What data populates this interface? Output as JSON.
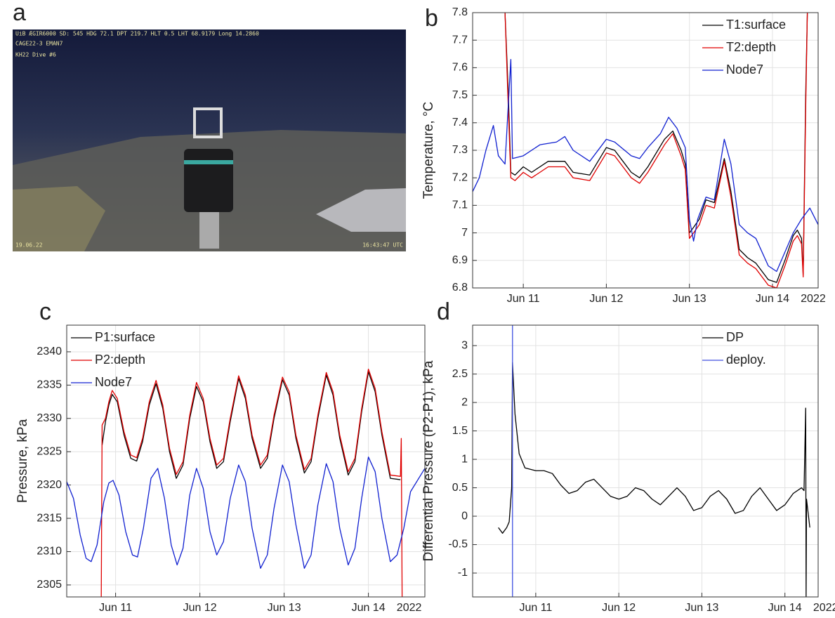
{
  "panel_labels": [
    "a",
    "b",
    "c",
    "d"
  ],
  "photo": {
    "overlay": [
      "UiB ÆGIR6000  SD: 545 HDG  72.1  DPT  219.7  HLT  0.5  LHT  68.9179  Long  14.2860",
      "CAGE22-3 EMAN7",
      "KH22 Dive #6",
      "19.06.22",
      "16:43:47 UTC"
    ]
  },
  "chart_data": [
    {
      "type": "line",
      "y_label": "Temperature, °C",
      "x_year_label": "2022",
      "grid": true,
      "legend": "upper right",
      "xlim": [
        10.39,
        14.55
      ],
      "ylim": [
        6.8,
        7.8
      ],
      "xticks": [
        {
          "value": 11,
          "label": "Jun 11"
        },
        {
          "value": 12,
          "label": "Jun 12"
        },
        {
          "value": 13,
          "label": "Jun 13"
        },
        {
          "value": 14,
          "label": "Jun 14"
        }
      ],
      "yticks": [
        6.8,
        6.9,
        7,
        7.1,
        7.2,
        7.3,
        7.4,
        7.5,
        7.6,
        7.7,
        7.8
      ],
      "series": [
        {
          "name": "T1:surface",
          "color": "#000000",
          "x": [
            10.78,
            10.82,
            10.85,
            10.9,
            11.0,
            11.1,
            11.3,
            11.5,
            11.6,
            11.8,
            12.0,
            12.1,
            12.2,
            12.3,
            12.4,
            12.5,
            12.7,
            12.8,
            12.9,
            12.95,
            13.0,
            13.05,
            13.12,
            13.2,
            13.3,
            13.42,
            13.5,
            13.6,
            13.7,
            13.8,
            13.95,
            14.05,
            14.15,
            14.25,
            14.3,
            14.35,
            14.37,
            14.4,
            14.42
          ],
          "values": [
            7.8,
            7.5,
            7.22,
            7.21,
            7.24,
            7.22,
            7.26,
            7.26,
            7.22,
            7.21,
            7.31,
            7.3,
            7.26,
            7.22,
            7.2,
            7.24,
            7.34,
            7.37,
            7.3,
            7.25,
            7.0,
            7.02,
            7.05,
            7.12,
            7.11,
            7.27,
            7.15,
            6.94,
            6.91,
            6.89,
            6.83,
            6.82,
            6.9,
            6.99,
            7.01,
            6.98,
            6.85,
            7.5,
            7.8
          ]
        },
        {
          "name": "T2:depth",
          "color": "#e00000",
          "x": [
            10.78,
            10.82,
            10.85,
            10.9,
            11.0,
            11.1,
            11.3,
            11.5,
            11.6,
            11.8,
            12.0,
            12.1,
            12.2,
            12.3,
            12.4,
            12.5,
            12.7,
            12.8,
            12.9,
            12.95,
            13.0,
            13.05,
            13.12,
            13.2,
            13.3,
            13.42,
            13.5,
            13.6,
            13.7,
            13.8,
            13.95,
            14.05,
            14.15,
            14.25,
            14.3,
            14.35,
            14.37,
            14.4,
            14.42
          ],
          "values": [
            7.8,
            7.45,
            7.2,
            7.19,
            7.22,
            7.2,
            7.24,
            7.24,
            7.2,
            7.19,
            7.29,
            7.28,
            7.24,
            7.2,
            7.18,
            7.22,
            7.32,
            7.36,
            7.28,
            7.23,
            6.98,
            7.0,
            7.03,
            7.1,
            7.09,
            7.26,
            7.13,
            6.92,
            6.89,
            6.87,
            6.81,
            6.8,
            6.88,
            6.97,
            6.99,
            6.96,
            6.84,
            7.45,
            7.8
          ]
        },
        {
          "name": "Node7",
          "color": "#1020d0",
          "x": [
            10.39,
            10.47,
            10.55,
            10.64,
            10.7,
            10.78,
            10.85,
            10.87,
            11.0,
            11.2,
            11.4,
            11.5,
            11.6,
            11.8,
            12.0,
            12.1,
            12.3,
            12.4,
            12.5,
            12.65,
            12.75,
            12.85,
            12.95,
            13.0,
            13.05,
            13.1,
            13.2,
            13.3,
            13.42,
            13.5,
            13.6,
            13.7,
            13.8,
            13.95,
            14.05,
            14.15,
            14.25,
            14.35,
            14.45,
            14.55
          ],
          "values": [
            7.15,
            7.2,
            7.3,
            7.39,
            7.28,
            7.25,
            7.63,
            7.27,
            7.28,
            7.32,
            7.33,
            7.35,
            7.3,
            7.26,
            7.34,
            7.33,
            7.28,
            7.27,
            7.31,
            7.36,
            7.42,
            7.38,
            7.31,
            7.05,
            6.97,
            7.05,
            7.13,
            7.12,
            7.34,
            7.25,
            7.03,
            7.0,
            6.98,
            6.88,
            6.86,
            6.93,
            7.0,
            7.05,
            7.09,
            7.03
          ]
        }
      ]
    },
    {
      "type": "line",
      "y_label": "Pressure, kPa",
      "x_year_label": "2022",
      "grid": true,
      "legend": "upper left",
      "xlim": [
        10.42,
        14.67
      ],
      "ylim": [
        2303.2,
        2344
      ],
      "xticks": [
        {
          "value": 11,
          "label": "Jun 11"
        },
        {
          "value": 12,
          "label": "Jun 12"
        },
        {
          "value": 13,
          "label": "Jun 13"
        },
        {
          "value": 14,
          "label": "Jun 14"
        }
      ],
      "yticks": [
        2305,
        2310,
        2315,
        2320,
        2325,
        2330,
        2335,
        2340
      ],
      "series": [
        {
          "name": "P1:surface",
          "color": "#000000",
          "x": [
            10.84,
            10.88,
            10.92,
            10.96,
            11.02,
            11.1,
            11.18,
            11.25,
            11.32,
            11.4,
            11.48,
            11.56,
            11.64,
            11.72,
            11.8,
            11.88,
            11.96,
            12.04,
            12.12,
            12.2,
            12.28,
            12.36,
            12.46,
            12.54,
            12.62,
            12.72,
            12.8,
            12.88,
            12.98,
            13.06,
            13.14,
            13.24,
            13.32,
            13.4,
            13.5,
            13.58,
            13.66,
            13.76,
            13.84,
            13.92,
            14.0,
            14.08,
            14.16,
            14.26,
            14.38
          ],
          "values": [
            2326,
            2329.5,
            2332,
            2333.6,
            2332.5,
            2327.5,
            2324,
            2323.6,
            2326.5,
            2332,
            2335.2,
            2331.5,
            2325,
            2321,
            2323,
            2330,
            2334.8,
            2332.5,
            2326.5,
            2322.5,
            2323.5,
            2329.5,
            2336,
            2333,
            2327,
            2322.5,
            2324,
            2330,
            2335.8,
            2333.5,
            2327,
            2321.8,
            2323.5,
            2330,
            2336.5,
            2333.5,
            2327,
            2321.5,
            2323.5,
            2331,
            2337,
            2334,
            2327.5,
            2321,
            2320.8
          ]
        },
        {
          "name": "P2:depth",
          "color": "#e00000",
          "x": [
            10.83,
            10.84,
            10.88,
            10.92,
            10.96,
            11.02,
            11.1,
            11.18,
            11.25,
            11.32,
            11.4,
            11.48,
            11.56,
            11.64,
            11.72,
            11.8,
            11.88,
            11.96,
            12.04,
            12.12,
            12.2,
            12.28,
            12.36,
            12.46,
            12.54,
            12.62,
            12.72,
            12.8,
            12.88,
            12.98,
            13.06,
            13.14,
            13.24,
            13.32,
            13.4,
            13.5,
            13.58,
            13.66,
            13.76,
            13.84,
            13.92,
            14.0,
            14.08,
            14.16,
            14.26,
            14.38,
            14.39,
            14.4
          ],
          "values": [
            2303.2,
            2329,
            2330,
            2332.5,
            2334.2,
            2333,
            2328,
            2324.5,
            2324.1,
            2327,
            2332.5,
            2335.7,
            2332,
            2325.5,
            2321.6,
            2323.5,
            2330.5,
            2335.4,
            2333,
            2327,
            2323,
            2324,
            2330,
            2336.4,
            2333.5,
            2327.5,
            2323,
            2324.5,
            2330.5,
            2336.2,
            2334,
            2327.5,
            2322.3,
            2324,
            2330.5,
            2336.9,
            2334,
            2327.5,
            2322,
            2324,
            2331.5,
            2337.4,
            2334.5,
            2328,
            2321.5,
            2321.3,
            2327,
            2303.2
          ]
        },
        {
          "name": "Node7",
          "color": "#1020d0",
          "x": [
            10.42,
            10.5,
            10.58,
            10.65,
            10.71,
            10.78,
            10.86,
            10.92,
            10.97,
            11.04,
            11.12,
            11.2,
            11.26,
            11.33,
            11.42,
            11.5,
            11.58,
            11.66,
            11.73,
            11.8,
            11.88,
            11.96,
            12.04,
            12.12,
            12.2,
            12.28,
            12.36,
            12.46,
            12.54,
            12.62,
            12.72,
            12.8,
            12.88,
            12.98,
            13.06,
            13.14,
            13.24,
            13.32,
            13.4,
            13.5,
            13.58,
            13.66,
            13.76,
            13.84,
            13.92,
            14.0,
            14.08,
            14.16,
            14.26,
            14.34,
            14.42,
            14.5,
            14.67
          ],
          "values": [
            2320.5,
            2318,
            2312.5,
            2309,
            2308.5,
            2311,
            2317.5,
            2320.3,
            2320.7,
            2318.5,
            2313,
            2309.5,
            2309.2,
            2313.5,
            2321,
            2322.5,
            2318,
            2311,
            2308,
            2310.5,
            2318.5,
            2322.5,
            2319.5,
            2313,
            2309.5,
            2311.5,
            2318,
            2323,
            2320.5,
            2313.5,
            2307.5,
            2309.5,
            2316.5,
            2323,
            2320.5,
            2314,
            2307.5,
            2309.5,
            2317,
            2323.2,
            2320.5,
            2313.5,
            2308,
            2310.5,
            2318,
            2324.2,
            2322,
            2315,
            2308.5,
            2309.5,
            2313.5,
            2319,
            2322.5
          ]
        }
      ]
    },
    {
      "type": "line",
      "y_label": "Differential Pressure (P2-P1), kPa",
      "x_year_label": "2022",
      "grid": true,
      "legend": "upper right",
      "xlim": [
        10.24,
        14.4
      ],
      "ylim": [
        -1.42,
        3.36
      ],
      "xticks": [
        {
          "value": 11,
          "label": "Jun 11"
        },
        {
          "value": 12,
          "label": "Jun 12"
        },
        {
          "value": 13,
          "label": "Jun 13"
        },
        {
          "value": 14,
          "label": "Jun 14"
        }
      ],
      "yticks": [
        -1,
        -0.5,
        0,
        0.5,
        1,
        1.5,
        2,
        2.5,
        3
      ],
      "series": [
        {
          "name": "DP",
          "color": "#000000",
          "x": [
            10.55,
            10.6,
            10.65,
            10.68,
            10.7,
            10.71,
            10.72,
            10.75,
            10.8,
            10.87,
            11.0,
            11.1,
            11.2,
            11.3,
            11.4,
            11.5,
            11.6,
            11.7,
            11.8,
            11.9,
            12.0,
            12.1,
            12.2,
            12.3,
            12.4,
            12.5,
            12.6,
            12.7,
            12.8,
            12.9,
            13.0,
            13.1,
            13.2,
            13.3,
            13.4,
            13.5,
            13.6,
            13.7,
            13.8,
            13.9,
            14.0,
            14.1,
            14.2,
            14.23,
            14.25,
            14.255,
            14.26,
            14.3
          ],
          "values": [
            -0.2,
            -0.3,
            -0.2,
            -0.1,
            0.3,
            0.5,
            2.7,
            1.8,
            1.1,
            0.85,
            0.8,
            0.8,
            0.75,
            0.55,
            0.4,
            0.45,
            0.6,
            0.65,
            0.5,
            0.35,
            0.3,
            0.35,
            0.5,
            0.45,
            0.3,
            0.2,
            0.35,
            0.5,
            0.35,
            0.1,
            0.15,
            0.35,
            0.45,
            0.3,
            0.05,
            0.1,
            0.35,
            0.5,
            0.3,
            0.1,
            0.2,
            0.4,
            0.5,
            0.45,
            1.9,
            -1.42,
            0.3,
            -0.2
          ]
        },
        {
          "name": "deploy.",
          "color": "#4050e0",
          "x": [
            10.72,
            10.72
          ],
          "values": [
            -1.42,
            3.36
          ]
        }
      ]
    }
  ]
}
